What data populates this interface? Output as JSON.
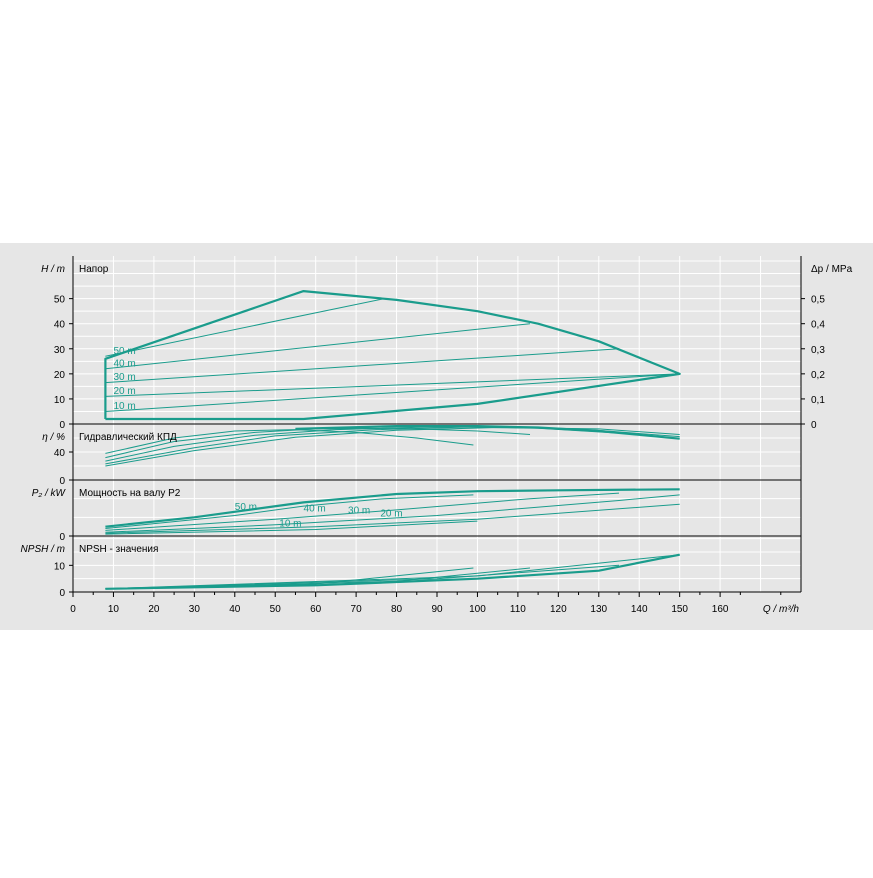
{
  "colors": {
    "background": "#e6e6e6",
    "grid": "#ffffff",
    "curve": "#1a9c8c",
    "axis": "#000000",
    "text": "#000000"
  },
  "chart_data": {
    "type": "line",
    "x_axis": {
      "label": "Q / m³/h",
      "range": [
        0,
        180
      ],
      "ticks": [
        0,
        10,
        20,
        30,
        40,
        50,
        60,
        70,
        80,
        90,
        100,
        110,
        120,
        130,
        140,
        150,
        160
      ]
    },
    "panels": [
      {
        "id": "head",
        "ylabel": "H / m",
        "title": "Напор",
        "yrange": [
          0,
          67
        ],
        "yticks": [
          0,
          10,
          20,
          30,
          40,
          50
        ],
        "right_axis": {
          "label": "Δp / MPa",
          "ticks": [
            "0",
            "0,1",
            "0,2",
            "0,3",
            "0,4",
            "0,5"
          ],
          "values": [
            0,
            0.1,
            0.2,
            0.3,
            0.4,
            0.5
          ]
        },
        "series": [
          {
            "name": "envelope",
            "bold": true,
            "x": [
              8,
              8,
              57,
              80,
              100,
              115,
              130,
              150,
              100,
              57,
              8
            ],
            "y": [
              2,
              26,
              53,
              49.5,
              45,
              40,
              33,
              20,
              8,
              2,
              2
            ]
          },
          {
            "name": "50 m",
            "x": [
              8,
              77
            ],
            "y": [
              27,
              50
            ]
          },
          {
            "name": "40 m",
            "x": [
              8,
              113
            ],
            "y": [
              22,
              40
            ]
          },
          {
            "name": "30 m",
            "x": [
              8,
              135
            ],
            "y": [
              16.5,
              30
            ]
          },
          {
            "name": "20 m",
            "x": [
              8,
              150
            ],
            "y": [
              11,
              20
            ]
          },
          {
            "name": "10 m",
            "x": [
              8,
              150
            ],
            "y": [
              5,
              20
            ]
          }
        ],
        "labels": [
          {
            "text": "50 m",
            "x": 10,
            "y": 28
          },
          {
            "text": "40 m",
            "x": 10,
            "y": 23
          },
          {
            "text": "30 m",
            "x": 10,
            "y": 17.5
          },
          {
            "text": "20 m",
            "x": 10,
            "y": 12
          },
          {
            "text": "10 m",
            "x": 10,
            "y": 6
          }
        ]
      },
      {
        "id": "efficiency",
        "ylabel": "η / %",
        "title": "Гидравлический КПД",
        "yrange": [
          0,
          80
        ],
        "yticks": [
          0,
          40
        ],
        "series": [
          {
            "name": "50 m",
            "x": [
              8,
              25,
              40,
              55,
              70,
              85,
              99
            ],
            "y": [
              38,
              60,
              70,
              72,
              68,
              60,
              50
            ]
          },
          {
            "name": "40 m",
            "x": [
              8,
              25,
              45,
              60,
              80,
              100,
              113
            ],
            "y": [
              32,
              55,
              68,
              73,
              74,
              70,
              65
            ]
          },
          {
            "name": "30 m",
            "x": [
              8,
              25,
              45,
              65,
              90,
              115,
              135
            ],
            "y": [
              27,
              48,
              64,
              72,
              76,
              74,
              67
            ]
          },
          {
            "name": "20 m",
            "x": [
              8,
              30,
              50,
              75,
              100,
              125,
              150
            ],
            "y": [
              23,
              46,
              63,
              72,
              76,
              73,
              62
            ]
          },
          {
            "name": "10 m",
            "x": [
              8,
              30,
              55,
              80,
              105,
              130,
              150
            ],
            "y": [
              20,
              42,
              61,
              71,
              75,
              73,
              65
            ]
          },
          {
            "name": "max",
            "bold": true,
            "x": [
              55,
              80,
              100,
              115,
              130,
              150
            ],
            "y": [
              73,
              77,
              77,
              75,
              70,
              59
            ]
          }
        ]
      },
      {
        "id": "power",
        "ylabel": "P₂ / kW",
        "title": "Мощность на валу P2",
        "yrange": [
          0,
          30
        ],
        "yticks": [
          0
        ],
        "series": [
          {
            "name": "max",
            "bold": true,
            "x": [
              8,
              30,
              57,
              80,
              100,
              120,
              150
            ],
            "y": [
              5,
              10,
              18,
              22.5,
              24,
              24.5,
              25
            ]
          },
          {
            "name": "50 m",
            "x": [
              8,
              40,
              57,
              77,
              99
            ],
            "y": [
              4,
              11,
              16,
              20,
              22
            ]
          },
          {
            "name": "40 m",
            "x": [
              8,
              50,
              80,
              113,
              135
            ],
            "y": [
              3,
              9,
              14,
              20,
              23
            ]
          },
          {
            "name": "30 m",
            "x": [
              8,
              50,
              90,
              135,
              150
            ],
            "y": [
              2,
              6,
              11,
              19,
              22
            ]
          },
          {
            "name": "20 m",
            "x": [
              8,
              60,
              100,
              150
            ],
            "y": [
              1.5,
              5,
              9,
              17
            ]
          },
          {
            "name": "10 m",
            "x": [
              8,
              60,
              100
            ],
            "y": [
              1,
              3.5,
              8
            ]
          }
        ],
        "labels": [
          {
            "text": "50 m",
            "x": 40,
            "y": 14
          },
          {
            "text": "40 m",
            "x": 57,
            "y": 13
          },
          {
            "text": "30 m",
            "x": 68,
            "y": 12
          },
          {
            "text": "20 m",
            "x": 76,
            "y": 10.5
          },
          {
            "text": "10 m",
            "x": 51,
            "y": 5
          }
        ]
      },
      {
        "id": "npsh",
        "ylabel": "NPSH / m",
        "title": "NPSH - значения",
        "yrange": [
          0,
          21
        ],
        "yticks": [
          0,
          10
        ],
        "series": [
          {
            "name": "max",
            "bold": true,
            "x": [
              8,
              60,
              100,
              130,
              150
            ],
            "y": [
              1.2,
              2.5,
              5,
              8,
              14
            ]
          },
          {
            "name": "50 m",
            "x": [
              8,
              60,
              99
            ],
            "y": [
              1.2,
              3,
              9
            ]
          },
          {
            "name": "40 m",
            "x": [
              8,
              80,
              113
            ],
            "y": [
              1.2,
              4,
              9
            ]
          },
          {
            "name": "30 m",
            "x": [
              8,
              90,
              135
            ],
            "y": [
              1.2,
              5,
              10
            ]
          },
          {
            "name": "20 m",
            "x": [
              8,
              100,
              150
            ],
            "y": [
              1.2,
              6,
              14
            ]
          }
        ]
      }
    ]
  }
}
